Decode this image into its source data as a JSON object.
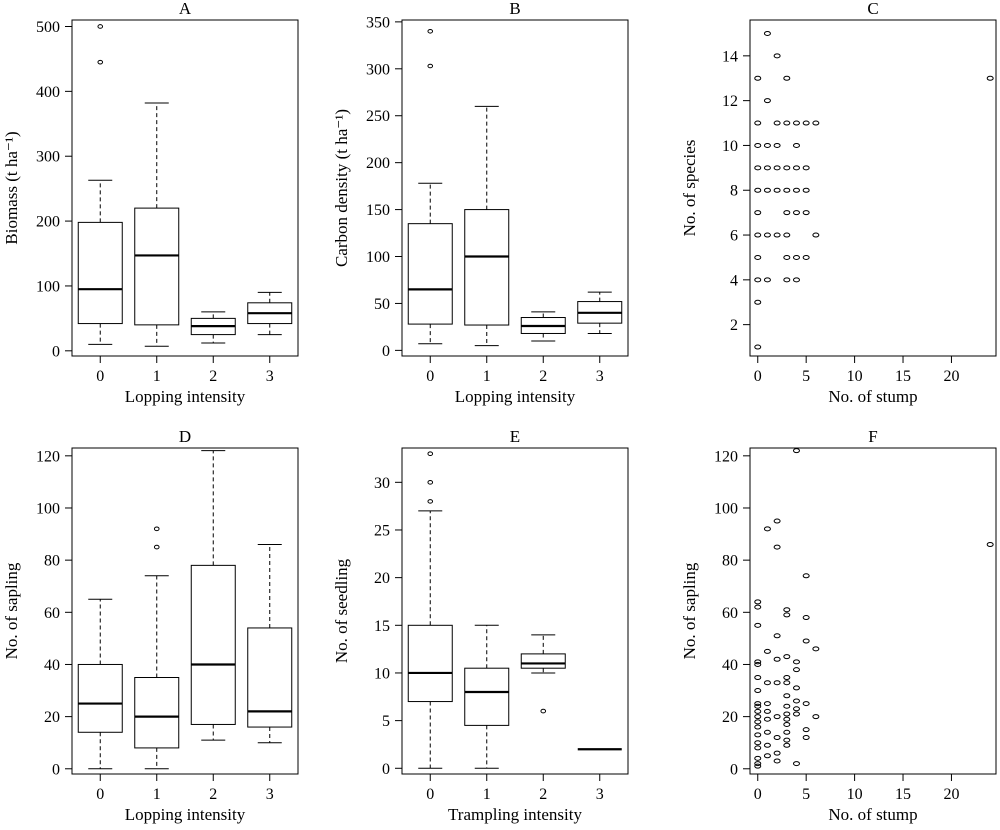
{
  "figure": {
    "colors": {
      "ink": "#000000",
      "background": "#ffffff"
    },
    "grid": false,
    "legend": "none"
  },
  "chart_data": [
    {
      "type": "box",
      "title": "A",
      "xlabel": "Lopping intensity",
      "ylabel": "Biomass (t ha⁻¹)",
      "ylim": [
        -8,
        510
      ],
      "yticks": [
        0,
        100,
        200,
        300,
        400,
        500
      ],
      "categories": [
        "0",
        "1",
        "2",
        "3"
      ],
      "boxes": [
        {
          "category": "0",
          "whisker_low": 10,
          "q1": 42,
          "median": 95,
          "q3": 198,
          "whisker_high": 263,
          "outliers": [
            445,
            500
          ]
        },
        {
          "category": "1",
          "whisker_low": 7,
          "q1": 40,
          "median": 147,
          "q3": 220,
          "whisker_high": 382,
          "outliers": []
        },
        {
          "category": "2",
          "whisker_low": 12,
          "q1": 25,
          "median": 38,
          "q3": 50,
          "whisker_high": 60,
          "outliers": []
        },
        {
          "category": "3",
          "whisker_low": 25,
          "q1": 42,
          "median": 58,
          "q3": 74,
          "whisker_high": 90,
          "outliers": []
        }
      ]
    },
    {
      "type": "box",
      "title": "B",
      "xlabel": "Lopping intensity",
      "ylabel": "Carbon density (t ha⁻¹)",
      "ylim": [
        -6,
        352
      ],
      "yticks": [
        0,
        50,
        100,
        150,
        200,
        250,
        300,
        350
      ],
      "categories": [
        "0",
        "1",
        "2",
        "3"
      ],
      "boxes": [
        {
          "category": "0",
          "whisker_low": 7,
          "q1": 28,
          "median": 65,
          "q3": 135,
          "whisker_high": 178,
          "outliers": [
            303,
            340
          ]
        },
        {
          "category": "1",
          "whisker_low": 5,
          "q1": 27,
          "median": 100,
          "q3": 150,
          "whisker_high": 260,
          "outliers": []
        },
        {
          "category": "2",
          "whisker_low": 10,
          "q1": 18,
          "median": 26,
          "q3": 35,
          "whisker_high": 41,
          "outliers": []
        },
        {
          "category": "3",
          "whisker_low": 18,
          "q1": 29,
          "median": 40,
          "q3": 52,
          "whisker_high": 62,
          "outliers": []
        }
      ]
    },
    {
      "type": "scatter",
      "title": "C",
      "xlabel": "No. of stump",
      "ylabel": "No. of species",
      "xlim": [
        -0.8,
        24.6
      ],
      "ylim": [
        0.6,
        15.6
      ],
      "xticks": [
        0,
        5,
        10,
        15,
        20
      ],
      "yticks": [
        2,
        4,
        6,
        8,
        10,
        12,
        14
      ],
      "points": [
        [
          0,
          1
        ],
        [
          0,
          3
        ],
        [
          0,
          4
        ],
        [
          0,
          5
        ],
        [
          0,
          6
        ],
        [
          0,
          7
        ],
        [
          0,
          8
        ],
        [
          0,
          9
        ],
        [
          0,
          10
        ],
        [
          0,
          11
        ],
        [
          0,
          13
        ],
        [
          1,
          4
        ],
        [
          1,
          6
        ],
        [
          1,
          8
        ],
        [
          1,
          9
        ],
        [
          1,
          10
        ],
        [
          1,
          12
        ],
        [
          1,
          15
        ],
        [
          2,
          6
        ],
        [
          2,
          8
        ],
        [
          2,
          9
        ],
        [
          2,
          10
        ],
        [
          2,
          11
        ],
        [
          2,
          14
        ],
        [
          3,
          4
        ],
        [
          3,
          5
        ],
        [
          3,
          6
        ],
        [
          3,
          7
        ],
        [
          3,
          8
        ],
        [
          3,
          9
        ],
        [
          3,
          11
        ],
        [
          3,
          13
        ],
        [
          4,
          4
        ],
        [
          4,
          5
        ],
        [
          4,
          7
        ],
        [
          4,
          8
        ],
        [
          4,
          9
        ],
        [
          4,
          10
        ],
        [
          4,
          11
        ],
        [
          5,
          5
        ],
        [
          5,
          7
        ],
        [
          5,
          8
        ],
        [
          5,
          9
        ],
        [
          5,
          11
        ],
        [
          6,
          6
        ],
        [
          6,
          11
        ],
        [
          24,
          13
        ]
      ]
    },
    {
      "type": "box",
      "title": "D",
      "xlabel": "Lopping intensity",
      "ylabel": "No. of sapling",
      "ylim": [
        -2,
        123
      ],
      "yticks": [
        0,
        20,
        40,
        60,
        80,
        100,
        120
      ],
      "categories": [
        "0",
        "1",
        "2",
        "3"
      ],
      "boxes": [
        {
          "category": "0",
          "whisker_low": 0,
          "q1": 14,
          "median": 25,
          "q3": 40,
          "whisker_high": 65,
          "outliers": []
        },
        {
          "category": "1",
          "whisker_low": 0,
          "q1": 8,
          "median": 20,
          "q3": 35,
          "whisker_high": 74,
          "outliers": [
            85,
            92
          ]
        },
        {
          "category": "2",
          "whisker_low": 11,
          "q1": 17,
          "median": 40,
          "q3": 78,
          "whisker_high": 122,
          "outliers": []
        },
        {
          "category": "3",
          "whisker_low": 10,
          "q1": 16,
          "median": 22,
          "q3": 54,
          "whisker_high": 86,
          "outliers": []
        }
      ]
    },
    {
      "type": "box",
      "title": "E",
      "xlabel": "Trampling intensity",
      "ylabel": "No. of seedling",
      "ylim": [
        -0.6,
        33.6
      ],
      "yticks": [
        0,
        5,
        10,
        15,
        20,
        25,
        30
      ],
      "categories": [
        "0",
        "1",
        "2",
        "3"
      ],
      "boxes": [
        {
          "category": "0",
          "whisker_low": 0,
          "q1": 7,
          "median": 10,
          "q3": 15,
          "whisker_high": 27,
          "outliers": [
            28,
            30,
            33
          ]
        },
        {
          "category": "1",
          "whisker_low": 0,
          "q1": 4.5,
          "median": 8,
          "q3": 10.5,
          "whisker_high": 15,
          "outliers": []
        },
        {
          "category": "2",
          "whisker_low": 10,
          "q1": 10.5,
          "median": 11,
          "q3": 12,
          "whisker_high": 14,
          "outliers": [
            6
          ]
        },
        {
          "category": "3",
          "whisker_low": 2,
          "q1": 2,
          "median": 2,
          "q3": 2,
          "whisker_high": 2,
          "outliers": []
        }
      ]
    },
    {
      "type": "scatter",
      "title": "F",
      "xlabel": "No. of stump",
      "ylabel": "No. of sapling",
      "xlim": [
        -0.8,
        24.6
      ],
      "ylim": [
        -2,
        123
      ],
      "xticks": [
        0,
        5,
        10,
        15,
        20
      ],
      "yticks": [
        0,
        20,
        40,
        60,
        80,
        100,
        120
      ],
      "points": [
        [
          0,
          1
        ],
        [
          0,
          2
        ],
        [
          0,
          4
        ],
        [
          0,
          8
        ],
        [
          0,
          10
        ],
        [
          0,
          13
        ],
        [
          0,
          16
        ],
        [
          0,
          18
        ],
        [
          0,
          20
        ],
        [
          0,
          22
        ],
        [
          0,
          24
        ],
        [
          0,
          25
        ],
        [
          0,
          30
        ],
        [
          0,
          35
        ],
        [
          0,
          40
        ],
        [
          0,
          41
        ],
        [
          0,
          55
        ],
        [
          0,
          62
        ],
        [
          0,
          64
        ],
        [
          1,
          5
        ],
        [
          1,
          9
        ],
        [
          1,
          14
        ],
        [
          1,
          19
        ],
        [
          1,
          22
        ],
        [
          1,
          25
        ],
        [
          1,
          33
        ],
        [
          1,
          45
        ],
        [
          1,
          92
        ],
        [
          2,
          3
        ],
        [
          2,
          6
        ],
        [
          2,
          12
        ],
        [
          2,
          20
        ],
        [
          2,
          33
        ],
        [
          2,
          42
        ],
        [
          2,
          51
        ],
        [
          2,
          85
        ],
        [
          2,
          95
        ],
        [
          3,
          9
        ],
        [
          3,
          11
        ],
        [
          3,
          14
        ],
        [
          3,
          17
        ],
        [
          3,
          19
        ],
        [
          3,
          21
        ],
        [
          3,
          24
        ],
        [
          3,
          28
        ],
        [
          3,
          33
        ],
        [
          3,
          35
        ],
        [
          3,
          43
        ],
        [
          3,
          59
        ],
        [
          3,
          61
        ],
        [
          4,
          2
        ],
        [
          4,
          21
        ],
        [
          4,
          23
        ],
        [
          4,
          26
        ],
        [
          4,
          31
        ],
        [
          4,
          38
        ],
        [
          4,
          41
        ],
        [
          4,
          122
        ],
        [
          5,
          12
        ],
        [
          5,
          15
        ],
        [
          5,
          25
        ],
        [
          5,
          49
        ],
        [
          5,
          58
        ],
        [
          5,
          74
        ],
        [
          6,
          20
        ],
        [
          6,
          46
        ],
        [
          24,
          86
        ]
      ]
    }
  ]
}
